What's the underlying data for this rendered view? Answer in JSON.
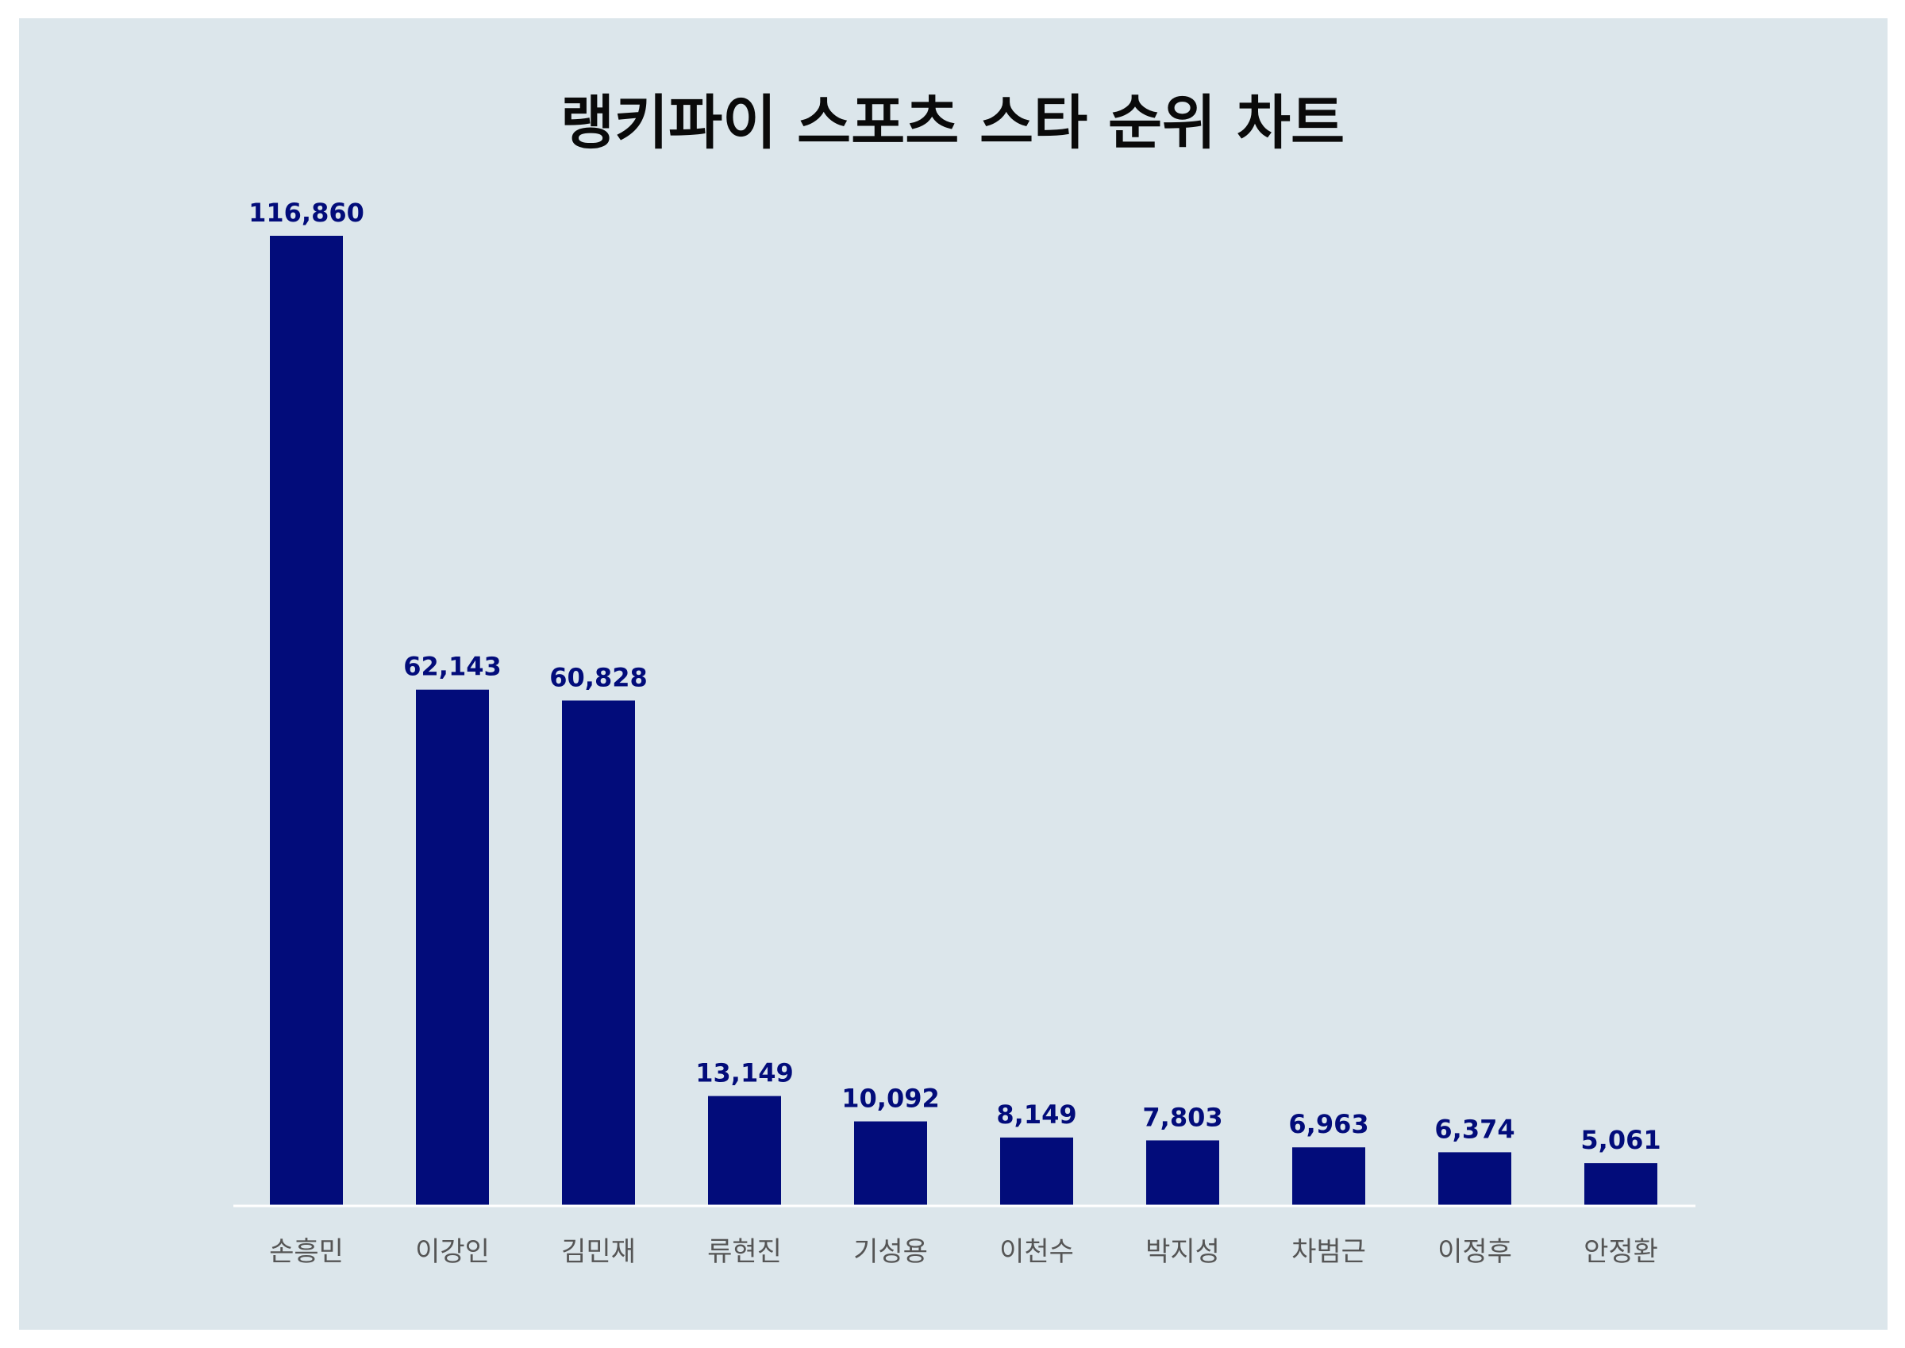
{
  "chart_data": {
    "type": "bar",
    "title": "랭키파이 스포츠 스타 순위 차트",
    "xlabel": "",
    "ylabel": "",
    "categories": [
      "손흥민",
      "이강인",
      "김민재",
      "류현진",
      "기성용",
      "이천수",
      "박지성",
      "차범근",
      "이정후",
      "안정환"
    ],
    "values": [
      116860,
      62143,
      60828,
      13149,
      10092,
      8149,
      7803,
      6963,
      6374,
      5061
    ],
    "value_labels": [
      "116,860",
      "62,143",
      "60,828",
      "13,149",
      "10,092",
      "8,149",
      "7,803",
      "6,963",
      "6,374",
      "5,061"
    ],
    "ylim": [
      0,
      116860
    ],
    "grid": false,
    "legend": "none"
  },
  "colors": {
    "background": "#dce6eb",
    "bar": "#020c7a",
    "value_label": "#020c7a",
    "category_label": "#555555",
    "title": "#0a0a0a",
    "baseline": "#ffffff"
  }
}
